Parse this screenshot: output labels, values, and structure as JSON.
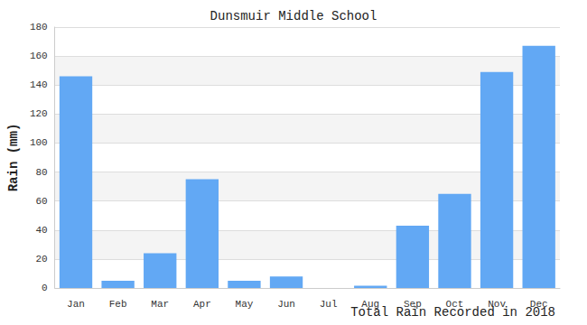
{
  "chart_data": {
    "type": "bar",
    "title": "Dunsmuir Middle School",
    "x_label": "Total Rain Recorded in 2018",
    "y_label": "Rain (mm)",
    "categories": [
      "Jan",
      "Feb",
      "Mar",
      "Apr",
      "May",
      "Jun",
      "Jul",
      "Aug",
      "Sep",
      "Oct",
      "Nov",
      "Dec"
    ],
    "values": [
      146,
      5,
      24,
      75,
      5,
      8,
      0,
      1.5,
      43,
      65,
      149,
      167
    ],
    "color": "#62a8f4",
    "ylim": [
      0,
      180
    ],
    "yticks": [
      0,
      20,
      40,
      60,
      80,
      100,
      120,
      140,
      160,
      180
    ],
    "grid": true
  }
}
